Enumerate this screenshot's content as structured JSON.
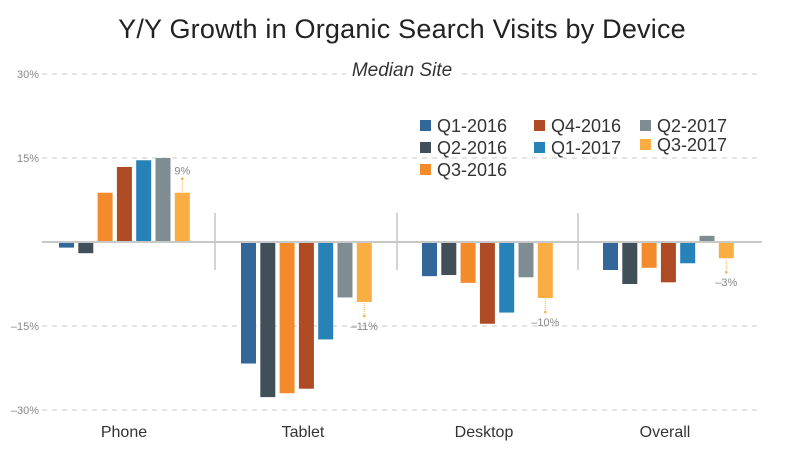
{
  "chart_data": {
    "type": "bar",
    "title": "Y/Y Growth in Organic Search Visits by Device",
    "subtitle": "Median Site",
    "xlabel": "",
    "ylabel": "",
    "ylim": [
      -30,
      30
    ],
    "yticks": [
      30,
      15,
      0,
      -15,
      -30
    ],
    "ytick_labels": [
      "30%",
      "15%",
      "",
      "–15%",
      "–30%"
    ],
    "grid": true,
    "legend_position": "top-right",
    "categories": [
      "Phone",
      "Tablet",
      "Desktop",
      "Overall"
    ],
    "series": [
      {
        "name": "Q1-2016",
        "color": "#336699",
        "values": [
          -1.0,
          -21.7,
          -6.1,
          -5.0
        ]
      },
      {
        "name": "Q2-2016",
        "color": "#414F59",
        "values": [
          -2.0,
          -27.7,
          -5.9,
          -7.5
        ]
      },
      {
        "name": "Q3-2016",
        "color": "#F38B2D",
        "values": [
          8.8,
          -27.0,
          -7.3,
          -4.6
        ]
      },
      {
        "name": "Q4-2016",
        "color": "#AE4B24",
        "values": [
          13.4,
          -26.2,
          -14.6,
          -7.2
        ]
      },
      {
        "name": "Q1-2017",
        "color": "#2782B8",
        "values": [
          14.6,
          -17.4,
          -12.6,
          -3.8
        ]
      },
      {
        "name": "Q2-2017",
        "color": "#7F8D93",
        "values": [
          15.0,
          -9.9,
          -6.3,
          1.1
        ]
      },
      {
        "name": "Q3-2017",
        "color": "#F9AD43",
        "values": [
          8.8,
          -10.7,
          -10.0,
          -2.9
        ]
      }
    ],
    "legend_order": [
      "Q1-2016",
      "Q4-2016",
      "Q2-2017",
      "Q2-2016",
      "Q1-2017",
      "Q3-2017",
      "Q3-2016"
    ],
    "annotations": [
      {
        "category": "Phone",
        "series": "Q3-2017",
        "label": "9%"
      },
      {
        "category": "Tablet",
        "series": "Q3-2017",
        "label": "–11%"
      },
      {
        "category": "Desktop",
        "series": "Q3-2017",
        "label": "–10%"
      },
      {
        "category": "Overall",
        "series": "Q3-2017",
        "label": "–3%"
      }
    ]
  }
}
